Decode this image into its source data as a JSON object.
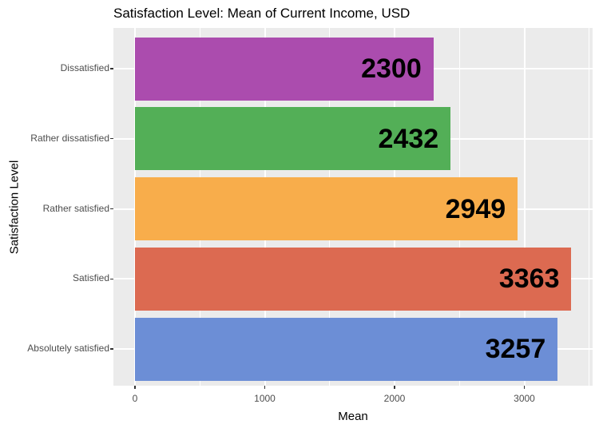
{
  "title": "Satisfaction Level: Mean of Current Income, USD",
  "chart_data": {
    "type": "bar",
    "orientation": "horizontal",
    "title": "Satisfaction Level: Mean of Current Income, USD",
    "xlabel": "Mean",
    "ylabel": "Satisfaction Level",
    "categories": [
      "Dissatisfied",
      "Rather dissatisfied",
      "Rather satisfied",
      "Satisfied",
      "Absolutely satisfied"
    ],
    "values": [
      2300,
      2432,
      2949,
      3363,
      3257
    ],
    "bar_colors": [
      "#AB4CAE",
      "#53AF57",
      "#F8AD4B",
      "#DC6A51",
      "#6C8ED6"
    ],
    "value_labels": [
      "2300",
      "2432",
      "2949",
      "3363",
      "3257"
    ],
    "x_major_ticks": [
      0,
      1000,
      2000,
      3000
    ],
    "x_minor_ticks": [
      500,
      1500,
      2500,
      3500
    ],
    "x_tick_labels": [
      "0",
      "1000",
      "2000",
      "3000"
    ],
    "xlim": [
      -168,
      3531
    ],
    "grid": "on",
    "legend": "none",
    "panel_background": "#EBEBEB",
    "grid_color": "#FFFFFF",
    "tick_label_color": "#4D4D4D",
    "text_color": "#000000"
  }
}
